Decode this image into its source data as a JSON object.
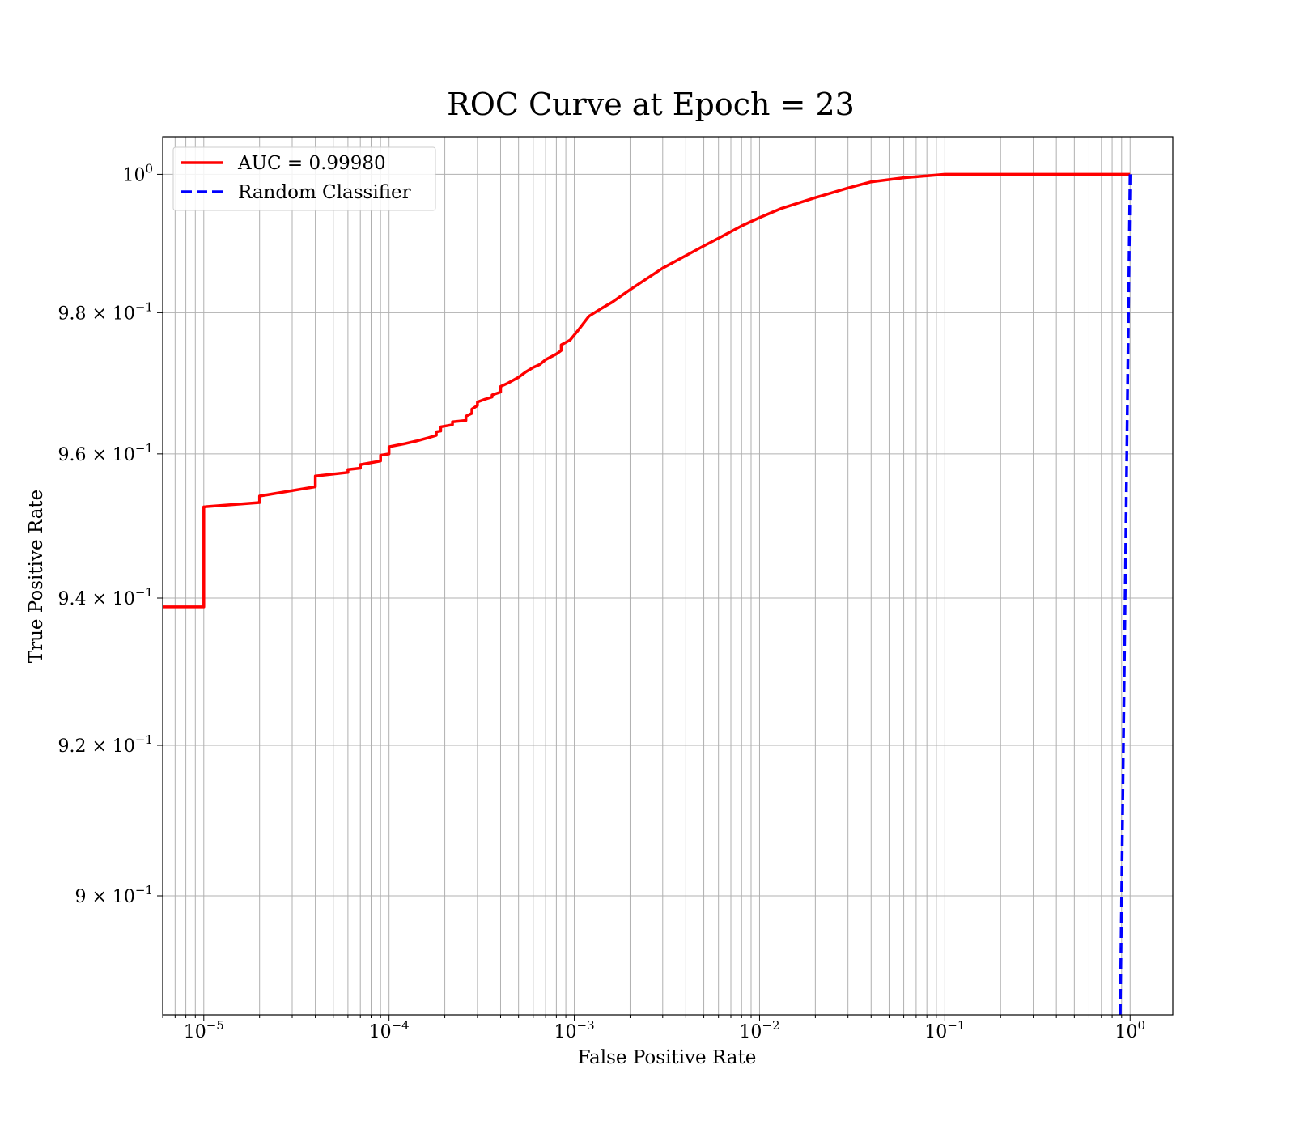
{
  "chart_data": {
    "type": "line",
    "title": "ROC Curve at Epoch = 23",
    "xlabel": "False Positive Rate",
    "ylabel": "True Positive Rate",
    "xscale": "log",
    "yscale": "log",
    "xlim": [
      6e-06,
      1.7
    ],
    "ylim": [
      0.8845,
      1.0055
    ],
    "grid": true,
    "grid_minor": true,
    "legend_position": "upper-left",
    "x_ticks": [
      {
        "value": 1e-05,
        "base": "10",
        "exp": "−5"
      },
      {
        "value": 0.0001,
        "base": "10",
        "exp": "−4"
      },
      {
        "value": 0.001,
        "base": "10",
        "exp": "−3"
      },
      {
        "value": 0.01,
        "base": "10",
        "exp": "−2"
      },
      {
        "value": 0.1,
        "base": "10",
        "exp": "−1"
      },
      {
        "value": 1,
        "base": "10",
        "exp": "0"
      }
    ],
    "y_ticks": [
      {
        "value": 0.9,
        "base": "9 × 10",
        "exp": "−1"
      },
      {
        "value": 0.92,
        "base": "9.2 × 10",
        "exp": "−1"
      },
      {
        "value": 0.94,
        "base": "9.4 × 10",
        "exp": "−1"
      },
      {
        "value": 0.96,
        "base": "9.6 × 10",
        "exp": "−1"
      },
      {
        "value": 0.98,
        "base": "9.8 × 10",
        "exp": "−1"
      },
      {
        "value": 1.0,
        "base": "10",
        "exp": "0"
      }
    ],
    "series": [
      {
        "name": "AUC = 0.99980",
        "color": "#ff0000",
        "style": "solid",
        "points": [
          [
            6e-06,
            0.9388
          ],
          [
            1e-05,
            0.9388
          ],
          [
            1e-05,
            0.9526
          ],
          [
            2e-05,
            0.9532
          ],
          [
            2e-05,
            0.9541
          ],
          [
            4e-05,
            0.9554
          ],
          [
            4e-05,
            0.9569
          ],
          [
            6e-05,
            0.9574
          ],
          [
            6e-05,
            0.9578
          ],
          [
            7e-05,
            0.958
          ],
          [
            7e-05,
            0.9585
          ],
          [
            9e-05,
            0.959
          ],
          [
            9e-05,
            0.9598
          ],
          [
            0.0001,
            0.96
          ],
          [
            0.0001,
            0.961
          ],
          [
            0.00012,
            0.9614
          ],
          [
            0.00014,
            0.9618
          ],
          [
            0.00016,
            0.9622
          ],
          [
            0.00018,
            0.9626
          ],
          [
            0.00018,
            0.9631
          ],
          [
            0.00019,
            0.9632
          ],
          [
            0.00019,
            0.9638
          ],
          [
            0.00021,
            0.964
          ],
          [
            0.00022,
            0.9641
          ],
          [
            0.00022,
            0.9645
          ],
          [
            0.00024,
            0.9646
          ],
          [
            0.00026,
            0.9647
          ],
          [
            0.00026,
            0.9653
          ],
          [
            0.00028,
            0.9657
          ],
          [
            0.00028,
            0.9663
          ],
          [
            0.0003,
            0.9668
          ],
          [
            0.0003,
            0.9673
          ],
          [
            0.00033,
            0.9677
          ],
          [
            0.00036,
            0.968
          ],
          [
            0.00036,
            0.9683
          ],
          [
            0.0004,
            0.9687
          ],
          [
            0.0004,
            0.9695
          ],
          [
            0.00044,
            0.97
          ],
          [
            0.0005,
            0.9708
          ],
          [
            0.00055,
            0.9716
          ],
          [
            0.0006,
            0.9722
          ],
          [
            0.00065,
            0.9726
          ],
          [
            0.0007,
            0.9733
          ],
          [
            0.0008,
            0.9741
          ],
          [
            0.00085,
            0.9746
          ],
          [
            0.00085,
            0.9754
          ],
          [
            0.00095,
            0.9761
          ],
          [
            0.00105,
            0.9775
          ],
          [
            0.0012,
            0.9795
          ],
          [
            0.0014,
            0.9806
          ],
          [
            0.0016,
            0.9815
          ],
          [
            0.002,
            0.9833
          ],
          [
            0.0025,
            0.985
          ],
          [
            0.003,
            0.9864
          ],
          [
            0.004,
            0.9882
          ],
          [
            0.005,
            0.9896
          ],
          [
            0.0065,
            0.9912
          ],
          [
            0.008,
            0.9925
          ],
          [
            0.01,
            0.9937
          ],
          [
            0.013,
            0.995
          ],
          [
            0.02,
            0.9966
          ],
          [
            0.03,
            0.998
          ],
          [
            0.04,
            0.9989
          ],
          [
            0.06,
            0.9995
          ],
          [
            0.1,
            1.0
          ],
          [
            1.0,
            1.0
          ]
        ]
      },
      {
        "name": "Random Classifier",
        "color": "#0000ff",
        "style": "dashed",
        "points": [
          [
            0.8845,
            0.8845
          ],
          [
            0.9,
            0.9
          ],
          [
            0.92,
            0.92
          ],
          [
            0.94,
            0.94
          ],
          [
            0.96,
            0.96
          ],
          [
            0.98,
            0.98
          ],
          [
            1.0,
            1.0
          ]
        ]
      }
    ]
  }
}
